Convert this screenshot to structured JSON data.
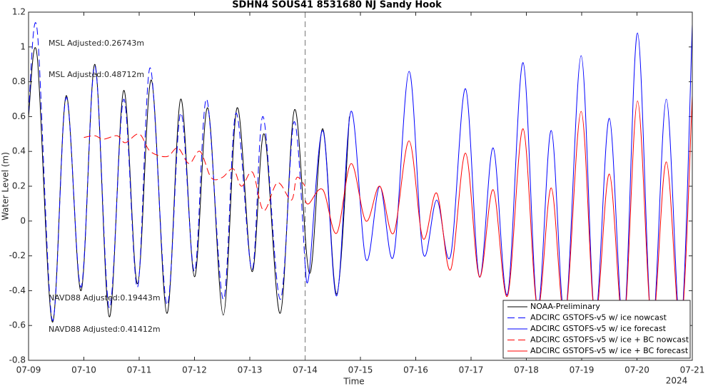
{
  "chart_data": {
    "type": "line",
    "title": "SDHN4 SOUS41 8531680 NJ Sandy Hook",
    "x_label": "Time",
    "y_label": "Water Level (m)",
    "xlim": [
      0,
      12
    ],
    "xticks": [
      {
        "value": 0,
        "label": "07-09"
      },
      {
        "value": 1,
        "label": "07-10"
      },
      {
        "value": 2,
        "label": "07-11"
      },
      {
        "value": 3,
        "label": "07-12"
      },
      {
        "value": 4,
        "label": "07-13"
      },
      {
        "value": 5,
        "label": "07-14"
      },
      {
        "value": 6,
        "label": "07-15"
      },
      {
        "value": 7,
        "label": "07-16"
      },
      {
        "value": 8,
        "label": "07-17"
      },
      {
        "value": 9,
        "label": "07-18"
      },
      {
        "value": 10,
        "label": "07-19"
      },
      {
        "value": 11,
        "label": "07-20"
      },
      {
        "value": 12,
        "label": "07-21"
      }
    ],
    "x_year_label": "2024",
    "ylim": [
      -0.8,
      1.2
    ],
    "yticks": [
      -0.8,
      -0.6,
      -0.4,
      -0.2,
      0,
      0.2,
      0.4,
      0.6,
      0.8,
      1,
      1.2
    ],
    "forecast_start": 5,
    "legend_position": "lower right",
    "series": [
      {
        "name": "NOAA-Preliminary",
        "color": "#000000",
        "dash": "solid",
        "x": [
          0,
          0.155,
          0.43,
          0.68,
          0.95,
          1.2,
          1.46,
          1.72,
          1.97,
          2.22,
          2.5,
          2.75,
          3.0,
          3.24,
          3.52,
          3.77,
          4.04,
          4.26,
          4.55,
          4.81,
          5.08,
          5.32,
          5.57,
          5.8
        ],
        "values": [
          0.6,
          0.95,
          -0.58,
          0.72,
          -0.4,
          0.9,
          -0.55,
          0.75,
          -0.36,
          0.81,
          -0.53,
          0.7,
          -0.32,
          0.65,
          -0.54,
          0.65,
          -0.29,
          0.5,
          -0.53,
          0.64,
          -0.3,
          0.53,
          -0.42,
          0.6
        ]
      },
      {
        "name": "ADCIRC GSTOFS-v5 w/ ice nowcast",
        "color": "#0000ff",
        "dash": "dashed",
        "x": [
          0,
          0.155,
          0.43,
          0.68,
          0.95,
          1.2,
          1.46,
          1.72,
          1.97,
          2.2,
          2.5,
          2.75,
          3.0,
          3.22,
          3.52,
          3.75,
          4.04,
          4.24,
          4.55,
          4.8,
          5.0
        ],
        "values": [
          0.62,
          1.1,
          -0.57,
          0.71,
          -0.38,
          0.89,
          -0.5,
          0.7,
          -0.38,
          0.88,
          -0.48,
          0.62,
          -0.29,
          0.7,
          -0.45,
          0.62,
          -0.28,
          0.6,
          -0.45,
          0.57,
          -0.25
        ]
      },
      {
        "name": "ADCIRC GSTOFS-v5 w/ ice forecast",
        "color": "#0000ff",
        "dash": "solid",
        "x": [
          5.0,
          5.07,
          5.32,
          5.57,
          5.83,
          6.1,
          6.35,
          6.6,
          6.88,
          7.13,
          7.38,
          7.63,
          7.9,
          8.15,
          8.4,
          8.66,
          8.94,
          9.2,
          9.45,
          9.7,
          9.99,
          10.24,
          10.5,
          10.76,
          11.01,
          11.27,
          11.53,
          11.79,
          12.0
        ],
        "values": [
          -0.25,
          -0.31,
          0.52,
          -0.43,
          0.63,
          -0.22,
          0.2,
          -0.2,
          0.86,
          -0.18,
          0.12,
          -0.2,
          0.76,
          -0.32,
          0.42,
          -0.42,
          0.91,
          -0.5,
          0.52,
          -0.55,
          0.95,
          -0.55,
          0.59,
          -0.6,
          1.08,
          -0.62,
          0.7,
          -0.62,
          1.13
        ]
      },
      {
        "name": "ADCIRC GSTOFS-v5 w/ ice + BC nowcast",
        "color": "#ff0000",
        "dash": "dashed",
        "x": [
          1.0,
          1.2,
          1.35,
          1.6,
          1.75,
          2.0,
          2.2,
          2.5,
          2.7,
          2.9,
          3.1,
          3.3,
          3.5,
          3.7,
          3.85,
          4.05,
          4.25,
          4.5,
          4.75,
          4.85,
          5.0
        ],
        "values": [
          0.48,
          0.49,
          0.47,
          0.49,
          0.45,
          0.5,
          0.4,
          0.37,
          0.42,
          0.33,
          0.4,
          0.25,
          0.25,
          0.3,
          0.2,
          0.28,
          0.06,
          0.22,
          0.12,
          0.25,
          0.2
        ]
      },
      {
        "name": "ADCIRC GSTOFS-v5 w/ ice + BC forecast",
        "color": "#ff0000",
        "dash": "solid",
        "x": [
          5.0,
          5.07,
          5.32,
          5.57,
          5.83,
          6.1,
          6.35,
          6.6,
          6.88,
          7.13,
          7.38,
          7.63,
          7.9,
          8.15,
          8.4,
          8.66,
          8.94,
          9.2,
          9.45,
          9.7,
          9.99,
          10.24,
          10.5,
          10.76,
          11.01,
          11.27,
          11.53,
          11.79,
          12.0
        ],
        "values": [
          0.12,
          0.1,
          0.18,
          -0.07,
          0.33,
          0.0,
          0.2,
          -0.07,
          0.46,
          -0.1,
          0.16,
          -0.28,
          0.39,
          -0.32,
          0.18,
          -0.43,
          0.53,
          -0.5,
          0.19,
          -0.55,
          0.63,
          -0.55,
          0.27,
          -0.6,
          0.69,
          -0.6,
          0.34,
          -0.62,
          0.72
        ]
      }
    ],
    "annotations": [
      {
        "text": "MSL Adjusted:0.26743m",
        "color": "#0000ff"
      },
      {
        "text": "MSL Adjusted:0.48712m",
        "color": "#ff0000"
      },
      {
        "text": "NAVD88 Adjusted:0.19443m",
        "color": "#0000ff"
      },
      {
        "text": "NAVD88 Adjusted:0.41412m",
        "color": "#ff0000"
      }
    ]
  }
}
